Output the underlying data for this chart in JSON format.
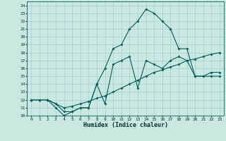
{
  "xlabel": "Humidex (Indice chaleur)",
  "xlim": [
    -0.5,
    23.5
  ],
  "ylim": [
    10,
    24.5
  ],
  "yticks": [
    10,
    11,
    12,
    13,
    14,
    15,
    16,
    17,
    18,
    19,
    20,
    21,
    22,
    23,
    24
  ],
  "xticks": [
    0,
    1,
    2,
    3,
    4,
    5,
    6,
    7,
    8,
    9,
    10,
    11,
    12,
    13,
    14,
    15,
    16,
    17,
    18,
    19,
    20,
    21,
    22,
    23
  ],
  "bg_color": "#c8e8e0",
  "grid_color": "#aad4cc",
  "line_color": "#006060",
  "line1_y": [
    12,
    12,
    12,
    11,
    10,
    10.5,
    11,
    11,
    14,
    16,
    18.5,
    19,
    21,
    22,
    23.5,
    23,
    22,
    21,
    18.5,
    18.5,
    15,
    15,
    15,
    15
  ],
  "line2_y": [
    12,
    12,
    12,
    11.5,
    10.5,
    10.5,
    11,
    11,
    14,
    11.5,
    16.5,
    17,
    17.5,
    13.5,
    17,
    16.5,
    16,
    17,
    17.5,
    17,
    15,
    15,
    15.5,
    15.5
  ],
  "line3_y": [
    12,
    12,
    12,
    11.5,
    11,
    11.2,
    11.5,
    11.8,
    12.2,
    12.5,
    13,
    13.5,
    14,
    14.5,
    15,
    15.5,
    15.8,
    16.2,
    16.5,
    17,
    17.2,
    17.5,
    17.8,
    18
  ]
}
